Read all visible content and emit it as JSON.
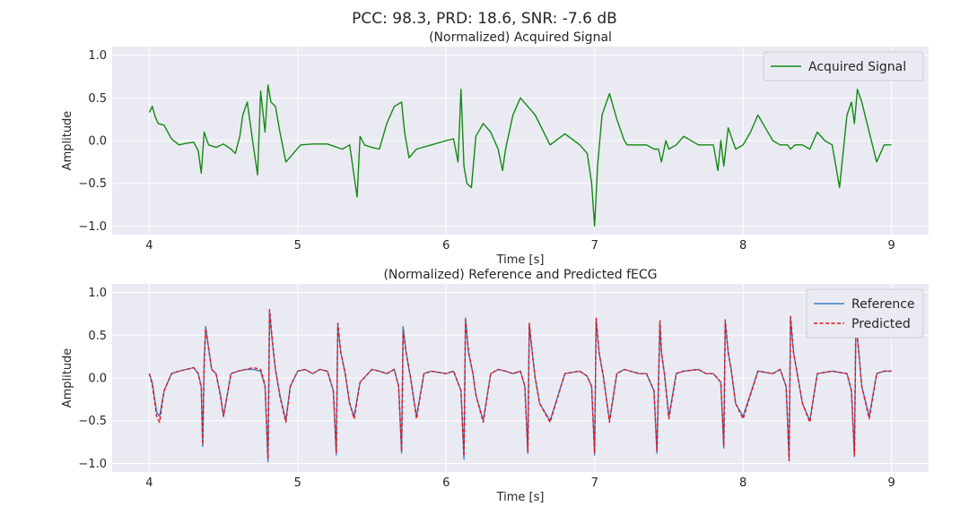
{
  "suptitle": "PCC: 98.3, PRD: 18.6, SNR: -7.6 dB",
  "colors": {
    "background": "#eaeaf2",
    "grid": "#ffffff",
    "acquired": "#138a13",
    "reference": "#3a7dc2",
    "predicted": "#e8141c"
  },
  "chart_data": [
    {
      "type": "line",
      "title": "(Normalized) Acquired Signal",
      "xlabel": "Time [s]",
      "ylabel": "Amplitude",
      "xlim": [
        3.75,
        9.25
      ],
      "ylim": [
        -1.1,
        1.1
      ],
      "xticks": [
        4,
        5,
        6,
        7,
        8,
        9
      ],
      "yticks": [
        -1.0,
        -0.5,
        0.0,
        0.5,
        1.0
      ],
      "xtick_labels": [
        "4",
        "5",
        "6",
        "7",
        "8",
        "9"
      ],
      "ytick_labels": [
        "−1.0",
        "−0.5",
        "0.0",
        "0.5",
        "1.0"
      ],
      "legend": {
        "position": "top-right",
        "entries": [
          "Acquired Signal"
        ]
      },
      "series": [
        {
          "name": "Acquired Signal",
          "style": "solid",
          "x": [
            4.0,
            4.02,
            4.04,
            4.06,
            4.1,
            4.15,
            4.2,
            4.25,
            4.3,
            4.33,
            4.35,
            4.37,
            4.4,
            4.45,
            4.5,
            4.55,
            4.58,
            4.61,
            4.63,
            4.66,
            4.7,
            4.73,
            4.75,
            4.78,
            4.8,
            4.82,
            4.85,
            4.88,
            4.92,
            4.97,
            5.02,
            5.1,
            5.2,
            5.3,
            5.35,
            5.4,
            5.42,
            5.45,
            5.5,
            5.55,
            5.6,
            5.65,
            5.7,
            5.72,
            5.75,
            5.8,
            5.9,
            6.0,
            6.05,
            6.08,
            6.1,
            6.12,
            6.14,
            6.17,
            6.2,
            6.25,
            6.3,
            6.35,
            6.38,
            6.4,
            6.45,
            6.5,
            6.6,
            6.7,
            6.8,
            6.9,
            6.95,
            6.98,
            7.0,
            7.02,
            7.05,
            7.1,
            7.15,
            7.2,
            7.22,
            7.25,
            7.3,
            7.35,
            7.4,
            7.43,
            7.45,
            7.48,
            7.5,
            7.55,
            7.6,
            7.7,
            7.75,
            7.8,
            7.83,
            7.85,
            7.87,
            7.9,
            7.95,
            8.0,
            8.05,
            8.1,
            8.15,
            8.2,
            8.25,
            8.3,
            8.32,
            8.35,
            8.4,
            8.45,
            8.5,
            8.55,
            8.6,
            8.65,
            8.7,
            8.73,
            8.75,
            8.77,
            8.8,
            8.85,
            8.9,
            8.95,
            9.0
          ],
          "y": [
            0.33,
            0.4,
            0.28,
            0.2,
            0.18,
            0.02,
            -0.05,
            -0.03,
            -0.02,
            -0.12,
            -0.38,
            0.1,
            -0.05,
            -0.08,
            -0.04,
            -0.1,
            -0.15,
            0.05,
            0.3,
            0.45,
            -0.05,
            -0.4,
            0.58,
            0.1,
            0.65,
            0.45,
            0.4,
            0.1,
            -0.25,
            -0.15,
            -0.05,
            -0.04,
            -0.04,
            -0.1,
            -0.05,
            -0.66,
            0.05,
            -0.05,
            -0.08,
            -0.1,
            0.2,
            0.4,
            0.45,
            0.1,
            -0.2,
            -0.1,
            -0.05,
            0.0,
            0.02,
            -0.25,
            0.6,
            -0.3,
            -0.5,
            -0.55,
            0.05,
            0.2,
            0.1,
            -0.1,
            -0.35,
            -0.1,
            0.3,
            0.5,
            0.3,
            -0.05,
            0.08,
            -0.05,
            -0.15,
            -0.5,
            -1.0,
            -0.3,
            0.3,
            0.55,
            0.25,
            0.0,
            -0.05,
            -0.05,
            -0.05,
            -0.05,
            -0.1,
            -0.1,
            -0.25,
            0.0,
            -0.1,
            -0.05,
            0.05,
            -0.05,
            -0.05,
            -0.05,
            -0.35,
            0.0,
            -0.3,
            0.15,
            -0.1,
            -0.05,
            0.1,
            0.3,
            0.15,
            0.0,
            -0.05,
            -0.05,
            -0.1,
            -0.05,
            -0.05,
            -0.1,
            0.1,
            0.0,
            -0.05,
            -0.55,
            0.3,
            0.45,
            0.2,
            0.6,
            0.45,
            0.1,
            -0.25,
            -0.05,
            -0.05
          ]
        }
      ]
    },
    {
      "type": "line",
      "title": "(Normalized) Reference and Predicted fECG",
      "xlabel": "Time [s]",
      "ylabel": "Amplitude",
      "xlim": [
        3.75,
        9.25
      ],
      "ylim": [
        -1.1,
        1.1
      ],
      "xticks": [
        4,
        5,
        6,
        7,
        8,
        9
      ],
      "yticks": [
        -1.0,
        -0.5,
        0.0,
        0.5,
        1.0
      ],
      "xtick_labels": [
        "4",
        "5",
        "6",
        "7",
        "8",
        "9"
      ],
      "ytick_labels": [
        "−1.0",
        "−0.5",
        "0.0",
        "0.5",
        "1.0"
      ],
      "legend": {
        "position": "top-right",
        "entries": [
          "Reference",
          "Predicted"
        ]
      },
      "beat_times": [
        4.36,
        4.8,
        5.26,
        5.7,
        6.12,
        6.55,
        7.0,
        7.44,
        7.87,
        8.31,
        8.75
      ],
      "beat_r_peak": [
        0.6,
        0.78,
        0.62,
        0.6,
        0.7,
        0.62,
        0.68,
        0.65,
        0.66,
        0.7,
        0.62
      ],
      "beat_s_trough": [
        -0.8,
        -0.98,
        -0.9,
        -0.88,
        -0.95,
        -0.88,
        -0.9,
        -0.88,
        -0.82,
        -0.95,
        -0.92
      ],
      "series": [
        {
          "name": "Reference",
          "style": "solid",
          "x": [
            4.0,
            4.02,
            4.05,
            4.07,
            4.1,
            4.15,
            4.2,
            4.25,
            4.3,
            4.33,
            4.35,
            4.36,
            4.37,
            4.38,
            4.4,
            4.42,
            4.45,
            4.48,
            4.5,
            4.55,
            4.6,
            4.65,
            4.7,
            4.75,
            4.78,
            4.8,
            4.81,
            4.83,
            4.85,
            4.88,
            4.92,
            4.95,
            5.0,
            5.05,
            5.1,
            5.15,
            5.2,
            5.24,
            5.26,
            5.27,
            5.29,
            5.32,
            5.35,
            5.38,
            5.42,
            5.5,
            5.55,
            5.6,
            5.65,
            5.68,
            5.7,
            5.71,
            5.73,
            5.76,
            5.8,
            5.85,
            5.9,
            6.0,
            6.05,
            6.1,
            6.12,
            6.13,
            6.15,
            6.18,
            6.2,
            6.25,
            6.3,
            6.35,
            6.4,
            6.45,
            6.5,
            6.53,
            6.55,
            6.56,
            6.58,
            6.6,
            6.63,
            6.7,
            6.8,
            6.9,
            6.95,
            6.98,
            7.0,
            7.01,
            7.03,
            7.06,
            7.1,
            7.15,
            7.2,
            7.3,
            7.35,
            7.4,
            7.42,
            7.44,
            7.45,
            7.47,
            7.5,
            7.55,
            7.6,
            7.7,
            7.75,
            7.8,
            7.85,
            7.87,
            7.88,
            7.9,
            7.92,
            7.95,
            8.0,
            8.1,
            8.2,
            8.25,
            8.29,
            8.31,
            8.32,
            8.34,
            8.37,
            8.4,
            8.45,
            8.5,
            8.6,
            8.7,
            8.73,
            8.75,
            8.76,
            8.78,
            8.8,
            8.85,
            8.9,
            8.95,
            9.0
          ],
          "y": [
            0.05,
            -0.05,
            -0.4,
            -0.45,
            -0.15,
            0.05,
            0.08,
            0.1,
            0.12,
            0.05,
            -0.1,
            -0.8,
            0.2,
            0.6,
            0.35,
            0.1,
            0.05,
            -0.2,
            -0.45,
            0.05,
            0.08,
            0.1,
            0.1,
            0.08,
            -0.1,
            -0.98,
            0.78,
            0.4,
            0.1,
            -0.2,
            -0.5,
            -0.1,
            0.08,
            0.1,
            0.05,
            0.1,
            0.08,
            -0.15,
            -0.9,
            0.62,
            0.3,
            0.05,
            -0.3,
            -0.45,
            -0.05,
            0.1,
            0.08,
            0.05,
            0.1,
            -0.1,
            -0.88,
            0.6,
            0.3,
            0.0,
            -0.45,
            0.05,
            0.08,
            0.05,
            0.08,
            -0.15,
            -0.95,
            0.7,
            0.3,
            0.05,
            -0.2,
            -0.5,
            0.05,
            0.1,
            0.08,
            0.05,
            0.08,
            -0.1,
            -0.88,
            0.62,
            0.3,
            0.0,
            -0.3,
            -0.5,
            0.05,
            0.08,
            0.02,
            -0.1,
            -0.9,
            0.68,
            0.3,
            0.0,
            -0.5,
            0.05,
            0.1,
            0.05,
            0.05,
            -0.15,
            -0.88,
            0.65,
            0.3,
            0.05,
            -0.45,
            0.05,
            0.08,
            0.1,
            0.05,
            0.05,
            -0.05,
            -0.82,
            0.66,
            0.3,
            0.1,
            -0.3,
            -0.45,
            0.08,
            0.05,
            0.1,
            -0.1,
            -0.95,
            0.7,
            0.3,
            0.0,
            -0.3,
            -0.5,
            0.05,
            0.08,
            0.05,
            -0.15,
            -0.92,
            0.62,
            0.3,
            -0.1,
            -0.45,
            0.05,
            0.08,
            0.08
          ]
        },
        {
          "name": "Predicted",
          "style": "dashed",
          "x": [
            4.0,
            4.02,
            4.05,
            4.07,
            4.1,
            4.15,
            4.2,
            4.25,
            4.3,
            4.33,
            4.35,
            4.36,
            4.37,
            4.38,
            4.4,
            4.42,
            4.45,
            4.48,
            4.5,
            4.55,
            4.6,
            4.65,
            4.7,
            4.75,
            4.78,
            4.8,
            4.81,
            4.83,
            4.85,
            4.88,
            4.92,
            4.95,
            5.0,
            5.05,
            5.1,
            5.15,
            5.2,
            5.24,
            5.26,
            5.27,
            5.29,
            5.32,
            5.35,
            5.38,
            5.42,
            5.5,
            5.55,
            5.6,
            5.65,
            5.68,
            5.7,
            5.71,
            5.73,
            5.76,
            5.8,
            5.85,
            5.9,
            6.0,
            6.05,
            6.1,
            6.12,
            6.13,
            6.15,
            6.18,
            6.2,
            6.25,
            6.3,
            6.35,
            6.4,
            6.45,
            6.5,
            6.53,
            6.55,
            6.56,
            6.58,
            6.6,
            6.63,
            6.7,
            6.8,
            6.9,
            6.95,
            6.98,
            7.0,
            7.01,
            7.03,
            7.06,
            7.1,
            7.15,
            7.2,
            7.3,
            7.35,
            7.4,
            7.42,
            7.44,
            7.45,
            7.47,
            7.5,
            7.55,
            7.6,
            7.7,
            7.75,
            7.8,
            7.85,
            7.87,
            7.88,
            7.9,
            7.92,
            7.95,
            8.0,
            8.1,
            8.2,
            8.25,
            8.29,
            8.31,
            8.32,
            8.34,
            8.37,
            8.4,
            8.45,
            8.5,
            8.6,
            8.7,
            8.73,
            8.75,
            8.76,
            8.78,
            8.8,
            8.85,
            8.9,
            8.95,
            9.0
          ],
          "y": [
            0.05,
            -0.08,
            -0.45,
            -0.52,
            -0.15,
            0.05,
            0.08,
            0.1,
            0.12,
            0.05,
            -0.12,
            -0.78,
            0.2,
            0.58,
            0.35,
            0.1,
            0.05,
            -0.22,
            -0.45,
            0.05,
            0.08,
            0.1,
            0.12,
            0.1,
            -0.08,
            -0.95,
            0.8,
            0.42,
            0.1,
            -0.22,
            -0.52,
            -0.1,
            0.08,
            0.1,
            0.05,
            0.1,
            0.08,
            -0.15,
            -0.88,
            0.64,
            0.3,
            0.05,
            -0.3,
            -0.48,
            -0.05,
            0.1,
            0.08,
            0.05,
            0.1,
            -0.1,
            -0.86,
            0.55,
            0.3,
            0.0,
            -0.48,
            0.05,
            0.08,
            0.05,
            0.08,
            -0.15,
            -0.92,
            0.68,
            0.32,
            0.05,
            -0.2,
            -0.52,
            0.05,
            0.1,
            0.08,
            0.05,
            0.08,
            -0.1,
            -0.86,
            0.64,
            0.3,
            0.0,
            -0.3,
            -0.52,
            0.05,
            0.08,
            0.02,
            -0.1,
            -0.88,
            0.7,
            0.3,
            0.0,
            -0.52,
            0.05,
            0.1,
            0.05,
            0.05,
            -0.15,
            -0.86,
            0.67,
            0.3,
            0.05,
            -0.48,
            0.05,
            0.08,
            0.1,
            0.05,
            0.05,
            -0.05,
            -0.8,
            0.68,
            0.3,
            0.1,
            -0.3,
            -0.48,
            0.08,
            0.05,
            0.1,
            -0.1,
            -0.97,
            0.72,
            0.3,
            0.0,
            -0.3,
            -0.52,
            0.05,
            0.08,
            0.05,
            -0.15,
            -0.9,
            0.65,
            0.3,
            -0.1,
            -0.48,
            0.05,
            0.08,
            0.08
          ]
        }
      ]
    }
  ]
}
